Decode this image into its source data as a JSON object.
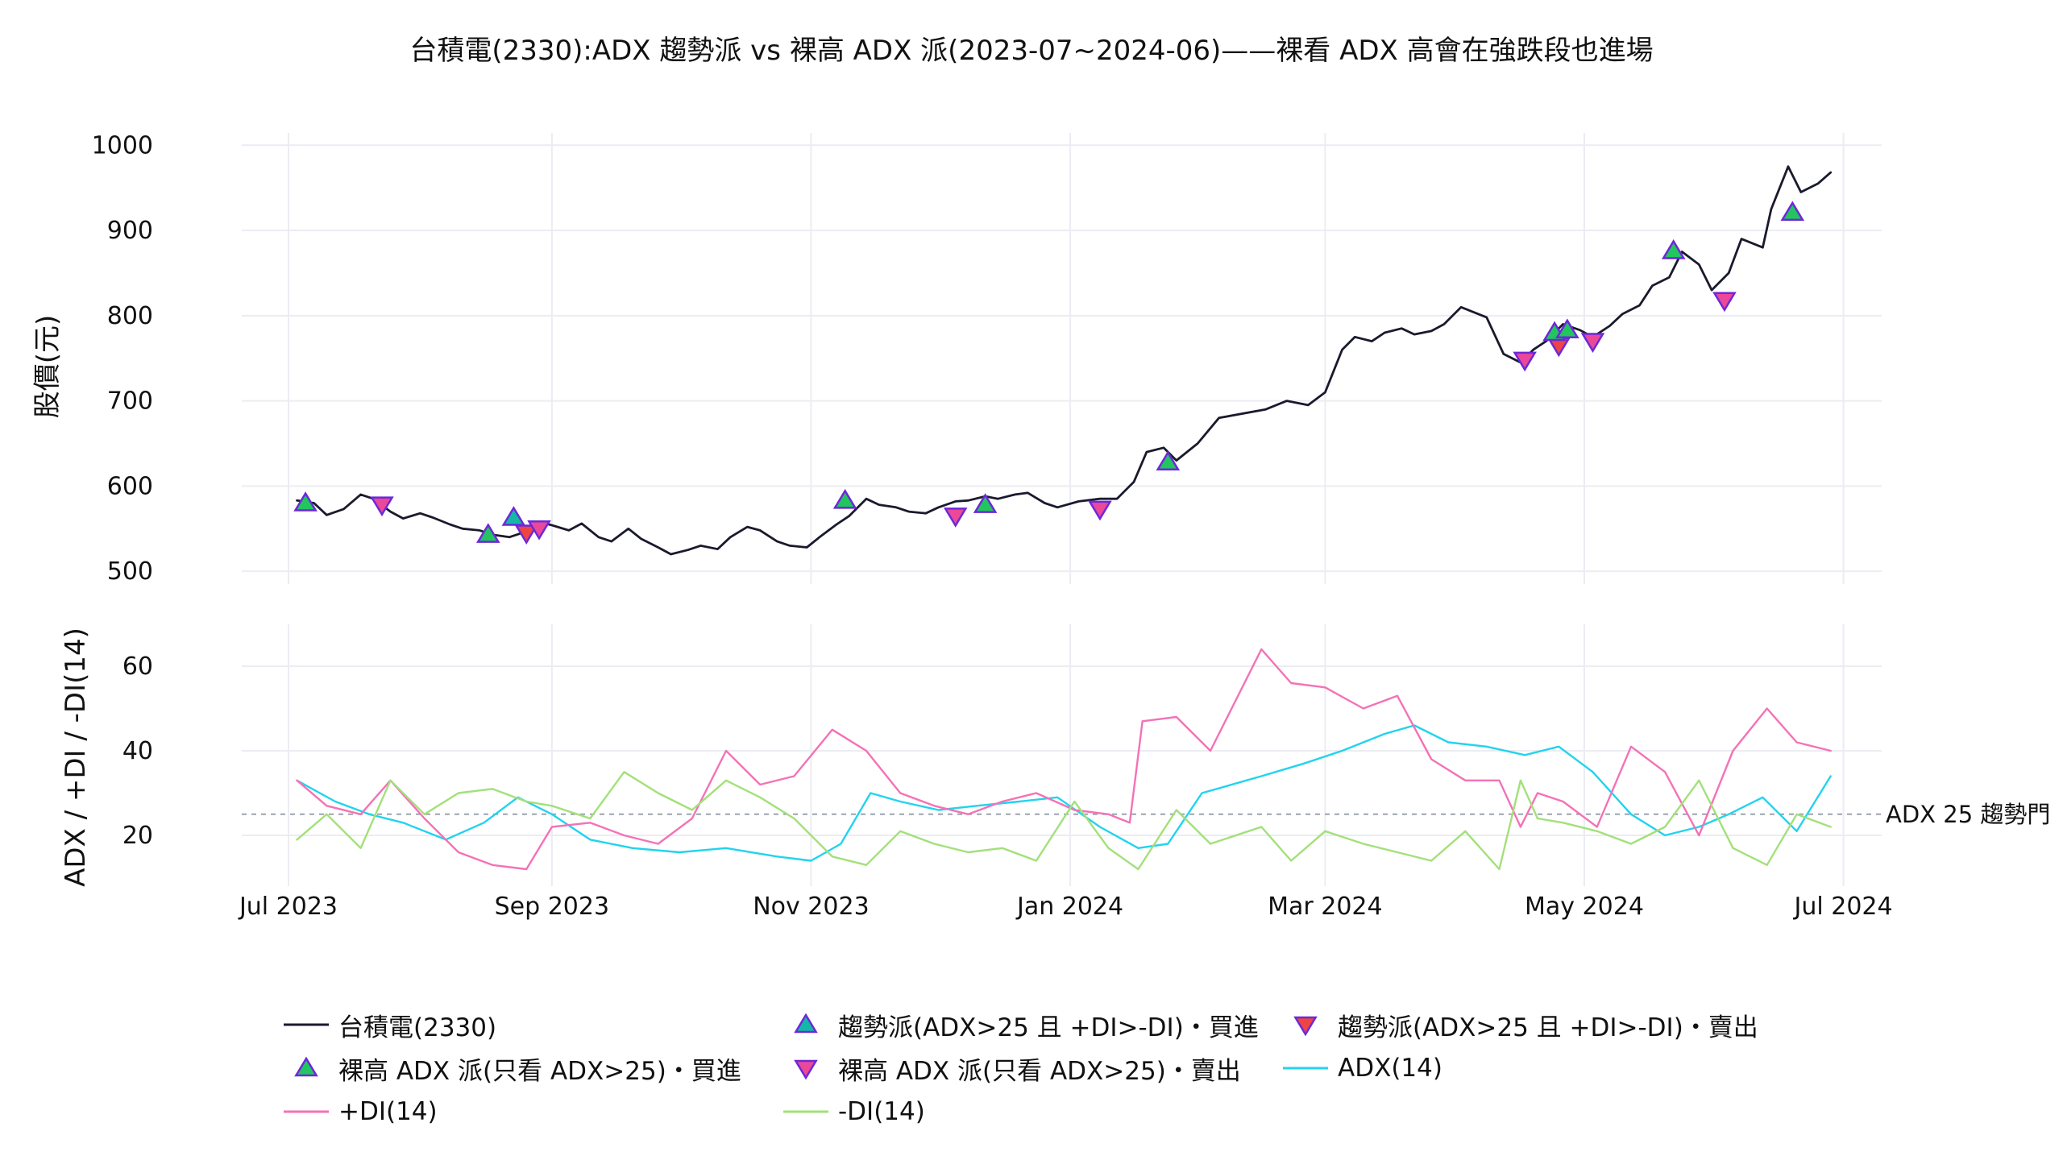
{
  "title": "台積電(2330):ADX 趨勢派 vs 裸高 ADX 派(2023-07~2024-06)——裸看 ADX 高會在強跌段也進場",
  "threshold_note": "ADX 25 趨勢門",
  "colors": {
    "price": "#1a1a2e",
    "adx": "#22d3ee",
    "pdi": "#f472b6",
    "mdi": "#a3e07a",
    "trend_buy": "#14b8a6",
    "trend_sell": "#ef4444",
    "naive_buy": "#22c55e",
    "naive_sell": "#ec4899",
    "marker_edge": "#6d28d9",
    "grid": "#ececf3",
    "threshold": "#9ca3af"
  },
  "legend": [
    {
      "key": "price",
      "label": "台積電(2330)"
    },
    {
      "key": "trend_buy",
      "label": "趨勢派(ADX>25 且 +DI>-DI)・買進"
    },
    {
      "key": "trend_sell",
      "label": "趨勢派(ADX>25 且 +DI>-DI)・賣出"
    },
    {
      "key": "naive_buy",
      "label": "裸高 ADX 派(只看 ADX>25)・買進"
    },
    {
      "key": "naive_sell",
      "label": "裸高 ADX 派(只看 ADX>25)・賣出"
    },
    {
      "key": "adx",
      "label": "ADX(14)"
    },
    {
      "key": "pdi",
      "label": "+DI(14)"
    },
    {
      "key": "mdi",
      "label": "-DI(14)"
    }
  ],
  "chart_data": [
    {
      "type": "line",
      "ylabel": "股價(元)",
      "ylim": [
        485,
        1005
      ],
      "yticks": [
        500,
        600,
        700,
        800,
        900,
        1000
      ],
      "grid": true,
      "series": [
        {
          "name": "台積電(2330)",
          "key": "price",
          "x": [
            "2023-07-03",
            "2023-07-07",
            "2023-07-10",
            "2023-07-14",
            "2023-07-18",
            "2023-07-21",
            "2023-07-25",
            "2023-07-28",
            "2023-08-01",
            "2023-08-04",
            "2023-08-08",
            "2023-08-11",
            "2023-08-15",
            "2023-08-18",
            "2023-08-22",
            "2023-08-25",
            "2023-08-29",
            "2023-09-01",
            "2023-09-05",
            "2023-09-08",
            "2023-09-12",
            "2023-09-15",
            "2023-09-19",
            "2023-09-22",
            "2023-09-26",
            "2023-09-29",
            "2023-10-03",
            "2023-10-06",
            "2023-10-10",
            "2023-10-13",
            "2023-10-17",
            "2023-10-20",
            "2023-10-24",
            "2023-10-27",
            "2023-10-31",
            "2023-11-03",
            "2023-11-07",
            "2023-11-10",
            "2023-11-14",
            "2023-11-17",
            "2023-11-21",
            "2023-11-24",
            "2023-11-28",
            "2023-12-01",
            "2023-12-05",
            "2023-12-08",
            "2023-12-12",
            "2023-12-15",
            "2023-12-19",
            "2023-12-22",
            "2023-12-26",
            "2023-12-29",
            "2024-01-03",
            "2024-01-08",
            "2024-01-12",
            "2024-01-16",
            "2024-01-19",
            "2024-01-23",
            "2024-01-26",
            "2024-01-31",
            "2024-02-05",
            "2024-02-16",
            "2024-02-21",
            "2024-02-26",
            "2024-03-01",
            "2024-03-05",
            "2024-03-08",
            "2024-03-12",
            "2024-03-15",
            "2024-03-19",
            "2024-03-22",
            "2024-03-26",
            "2024-03-29",
            "2024-04-02",
            "2024-04-08",
            "2024-04-12",
            "2024-04-16",
            "2024-04-19",
            "2024-04-22",
            "2024-04-24",
            "2024-04-26",
            "2024-04-30",
            "2024-05-03",
            "2024-05-07",
            "2024-05-10",
            "2024-05-14",
            "2024-05-17",
            "2024-05-21",
            "2024-05-24",
            "2024-05-28",
            "2024-05-31",
            "2024-06-04",
            "2024-06-07",
            "2024-06-12",
            "2024-06-14",
            "2024-06-18",
            "2024-06-21",
            "2024-06-25",
            "2024-06-28"
          ],
          "y": [
            583,
            580,
            566,
            573,
            590,
            585,
            570,
            562,
            568,
            563,
            555,
            550,
            548,
            543,
            540,
            545,
            558,
            554,
            548,
            556,
            540,
            535,
            550,
            538,
            528,
            520,
            525,
            530,
            526,
            540,
            552,
            548,
            535,
            530,
            528,
            540,
            555,
            565,
            585,
            578,
            575,
            570,
            568,
            575,
            582,
            583,
            588,
            585,
            590,
            592,
            580,
            575,
            582,
            585,
            585,
            605,
            640,
            645,
            630,
            650,
            680,
            690,
            700,
            695,
            710,
            760,
            775,
            770,
            780,
            785,
            778,
            782,
            790,
            810,
            798,
            755,
            745,
            760,
            770,
            780,
            790,
            783,
            775,
            788,
            802,
            812,
            835,
            845,
            875,
            860,
            830,
            850,
            890,
            880,
            925,
            975,
            945,
            955,
            968
          ]
        }
      ]
    },
    {
      "type": "line",
      "ylabel": "ADX / +DI / -DI(14)",
      "ylim": [
        8,
        68
      ],
      "yticks": [
        20,
        40,
        60
      ],
      "grid": true,
      "xticks": [
        "2023-07-01",
        "2023-09-01",
        "2023-11-01",
        "2024-01-01",
        "2024-03-01",
        "2024-05-01",
        "2024-07-01"
      ],
      "xticklabels": [
        "Jul 2023",
        "Sep 2023",
        "Nov 2023",
        "Jan 2024",
        "Mar 2024",
        "May 2024",
        "Jul 2024"
      ],
      "xlim": [
        "2023-06-20",
        "2024-07-10"
      ],
      "threshold": 25,
      "series": [
        {
          "name": "ADX(14)",
          "key": "adx",
          "x": [
            "2023-07-03",
            "2023-07-12",
            "2023-07-20",
            "2023-07-28",
            "2023-08-07",
            "2023-08-16",
            "2023-08-24",
            "2023-09-01",
            "2023-09-10",
            "2023-09-20",
            "2023-10-01",
            "2023-10-12",
            "2023-10-24",
            "2023-11-01",
            "2023-11-08",
            "2023-11-15",
            "2023-11-22",
            "2023-12-01",
            "2023-12-10",
            "2023-12-20",
            "2023-12-29",
            "2024-01-08",
            "2024-01-17",
            "2024-01-24",
            "2024-02-01",
            "2024-02-15",
            "2024-02-25",
            "2024-03-05",
            "2024-03-15",
            "2024-03-22",
            "2024-03-30",
            "2024-04-08",
            "2024-04-17",
            "2024-04-25",
            "2024-05-03",
            "2024-05-12",
            "2024-05-20",
            "2024-05-28",
            "2024-06-04",
            "2024-06-12",
            "2024-06-20",
            "2024-06-28"
          ],
          "y": [
            33,
            28,
            25,
            23,
            19,
            23,
            29,
            25,
            19,
            17,
            16,
            17,
            15,
            14,
            18,
            30,
            28,
            26,
            27,
            28,
            29,
            22,
            17,
            18,
            30,
            34,
            37,
            40,
            44,
            46,
            42,
            41,
            39,
            41,
            35,
            25,
            20,
            22,
            25,
            29,
            21,
            34
          ]
        },
        {
          "name": "+DI(14)",
          "key": "pdi",
          "x": [
            "2023-07-03",
            "2023-07-10",
            "2023-07-18",
            "2023-07-25",
            "2023-08-02",
            "2023-08-10",
            "2023-08-18",
            "2023-08-26",
            "2023-09-01",
            "2023-09-10",
            "2023-09-18",
            "2023-09-26",
            "2023-10-04",
            "2023-10-12",
            "2023-10-20",
            "2023-10-28",
            "2023-11-06",
            "2023-11-14",
            "2023-11-22",
            "2023-11-30",
            "2023-12-08",
            "2023-12-16",
            "2023-12-24",
            "2024-01-02",
            "2024-01-10",
            "2024-01-15",
            "2024-01-18",
            "2024-01-26",
            "2024-02-03",
            "2024-02-15",
            "2024-02-22",
            "2024-03-01",
            "2024-03-10",
            "2024-03-18",
            "2024-03-26",
            "2024-04-03",
            "2024-04-11",
            "2024-04-16",
            "2024-04-20",
            "2024-04-26",
            "2024-05-04",
            "2024-05-12",
            "2024-05-20",
            "2024-05-28",
            "2024-06-05",
            "2024-06-13",
            "2024-06-20",
            "2024-06-28"
          ],
          "y": [
            33,
            27,
            25,
            33,
            24,
            16,
            13,
            12,
            22,
            23,
            20,
            18,
            24,
            40,
            32,
            34,
            45,
            40,
            30,
            27,
            25,
            28,
            30,
            26,
            25,
            23,
            47,
            48,
            40,
            64,
            56,
            55,
            50,
            53,
            38,
            33,
            33,
            22,
            30,
            28,
            22,
            41,
            35,
            20,
            40,
            50,
            42,
            40
          ]
        },
        {
          "name": "-DI(14)",
          "key": "mdi",
          "x": [
            "2023-07-03",
            "2023-07-10",
            "2023-07-18",
            "2023-07-25",
            "2023-08-02",
            "2023-08-10",
            "2023-08-18",
            "2023-08-26",
            "2023-09-01",
            "2023-09-10",
            "2023-09-18",
            "2023-09-26",
            "2023-10-04",
            "2023-10-12",
            "2023-10-20",
            "2023-10-28",
            "2023-11-06",
            "2023-11-14",
            "2023-11-22",
            "2023-11-30",
            "2023-12-08",
            "2023-12-16",
            "2023-12-24",
            "2024-01-02",
            "2024-01-10",
            "2024-01-17",
            "2024-01-26",
            "2024-02-03",
            "2024-02-15",
            "2024-02-22",
            "2024-03-01",
            "2024-03-10",
            "2024-03-18",
            "2024-03-26",
            "2024-04-03",
            "2024-04-11",
            "2024-04-16",
            "2024-04-20",
            "2024-04-26",
            "2024-05-04",
            "2024-05-12",
            "2024-05-20",
            "2024-05-28",
            "2024-06-05",
            "2024-06-13",
            "2024-06-20",
            "2024-06-28"
          ],
          "y": [
            19,
            25,
            17,
            33,
            25,
            30,
            31,
            28,
            27,
            24,
            35,
            30,
            26,
            33,
            29,
            24,
            15,
            13,
            21,
            18,
            16,
            17,
            14,
            28,
            17,
            12,
            26,
            18,
            22,
            14,
            21,
            18,
            16,
            14,
            21,
            12,
            33,
            24,
            23,
            21,
            18,
            22,
            33,
            17,
            13,
            25,
            22
          ]
        }
      ]
    }
  ],
  "markers": {
    "trend_buy": [
      [
        "2023-08-23",
        563
      ]
    ],
    "trend_sell": [
      [
        "2023-08-26",
        545
      ],
      [
        "2024-04-25",
        765
      ]
    ],
    "naive_buy": [
      [
        "2023-07-05",
        580
      ],
      [
        "2023-08-17",
        543
      ],
      [
        "2023-11-09",
        583
      ],
      [
        "2023-12-12",
        578
      ],
      [
        "2024-01-24",
        628
      ],
      [
        "2024-04-24",
        780
      ],
      [
        "2024-04-27",
        783
      ],
      [
        "2024-05-22",
        876
      ],
      [
        "2024-06-19",
        921
      ]
    ],
    "naive_sell": [
      [
        "2023-07-23",
        578
      ],
      [
        "2023-08-29",
        550
      ],
      [
        "2023-12-05",
        565
      ],
      [
        "2024-01-08",
        573
      ],
      [
        "2024-04-17",
        748
      ],
      [
        "2024-05-03",
        770
      ],
      [
        "2024-06-03",
        818
      ]
    ]
  }
}
